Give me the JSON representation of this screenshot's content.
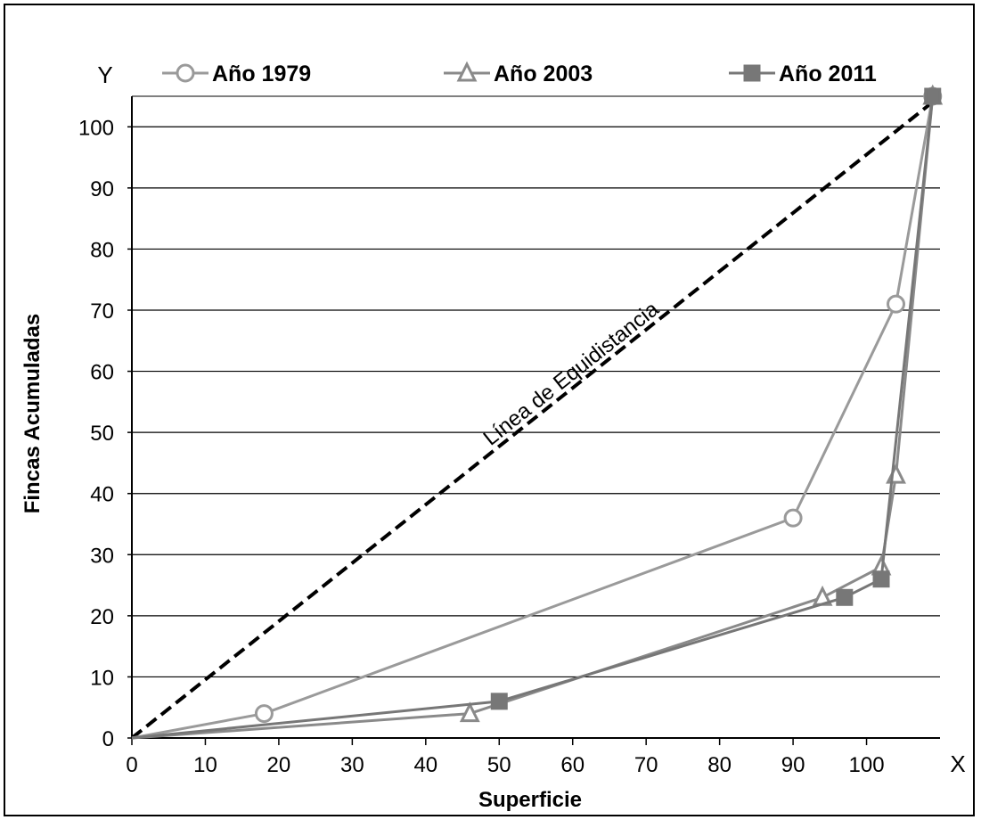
{
  "chart_data": {
    "type": "line",
    "title": "",
    "xlabel": "Superficie",
    "ylabel": "Fincas Acumuladas",
    "x_axis_letter": "X",
    "y_axis_letter": "Y",
    "xlim": [
      0,
      110
    ],
    "ylim": [
      0,
      105
    ],
    "x_ticks": [
      0,
      10,
      20,
      30,
      40,
      50,
      60,
      70,
      80,
      90,
      100
    ],
    "y_ticks": [
      0,
      10,
      20,
      30,
      40,
      50,
      60,
      70,
      80,
      90,
      100
    ],
    "grid": "horizontal",
    "legend_position": "top",
    "annotation": "Línea de Equidistancia",
    "equidistance_line": {
      "x": [
        0,
        110
      ],
      "y": [
        0,
        105
      ]
    },
    "series": [
      {
        "name": "Año 1979",
        "marker": "circle",
        "color": "#9a9a9a",
        "x": [
          0,
          18,
          90,
          104,
          109
        ],
        "y": [
          0,
          4,
          36,
          71,
          105
        ]
      },
      {
        "name": "Año 2003",
        "marker": "triangle",
        "color": "#8a8a8a",
        "x": [
          0,
          46,
          94,
          102,
          104,
          109
        ],
        "y": [
          0,
          4,
          23,
          28,
          43,
          105
        ]
      },
      {
        "name": "Año 2011",
        "marker": "square",
        "color": "#777777",
        "x": [
          0,
          50,
          97,
          102,
          109
        ],
        "y": [
          0,
          6,
          23,
          26,
          105
        ]
      }
    ]
  }
}
